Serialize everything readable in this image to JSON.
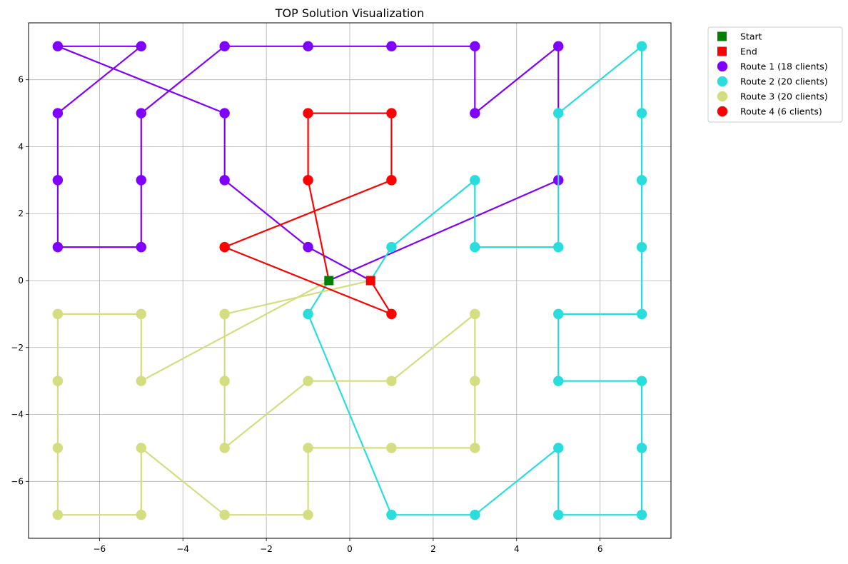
{
  "chart_data": {
    "type": "scatter",
    "title": "TOP Solution Visualization",
    "xlabel": "",
    "ylabel": "",
    "xlim": [
      -7.7,
      7.7
    ],
    "ylim": [
      -7.7,
      7.7
    ],
    "xticks": [
      -6,
      -4,
      -2,
      0,
      2,
      4,
      6
    ],
    "yticks": [
      -6,
      -4,
      -2,
      0,
      2,
      4,
      6
    ],
    "grid": true,
    "legend_position": "outside-top-right",
    "start": {
      "label": "Start",
      "x": -0.5,
      "y": 0,
      "color": "#008000"
    },
    "end": {
      "label": "End",
      "x": 0.5,
      "y": 0,
      "color": "#ff0000"
    },
    "series": [
      {
        "name": "Route 1 (18 clients)",
        "color": "#7f00ff",
        "points": [
          [
            -0.5,
            0
          ],
          [
            5,
            3
          ],
          [
            5,
            7
          ],
          [
            3,
            5
          ],
          [
            3,
            7
          ],
          [
            1,
            7
          ],
          [
            -1,
            7
          ],
          [
            -3,
            7
          ],
          [
            -5,
            5
          ],
          [
            -5,
            3
          ],
          [
            -5,
            1
          ],
          [
            -7,
            1
          ],
          [
            -7,
            3
          ],
          [
            -7,
            5
          ],
          [
            -5,
            7
          ],
          [
            -7,
            7
          ],
          [
            -3,
            5
          ],
          [
            -3,
            3
          ],
          [
            -1,
            1
          ],
          [
            0.5,
            0
          ]
        ]
      },
      {
        "name": "Route 2 (20 clients)",
        "color": "#2adddd",
        "points": [
          [
            -0.5,
            0
          ],
          [
            -1,
            -1
          ],
          [
            1,
            -7
          ],
          [
            3,
            -7
          ],
          [
            5,
            -5
          ],
          [
            5,
            -7
          ],
          [
            7,
            -7
          ],
          [
            7,
            -5
          ],
          [
            7,
            -3
          ],
          [
            5,
            -3
          ],
          [
            5,
            -1
          ],
          [
            7,
            -1
          ],
          [
            7,
            1
          ],
          [
            7,
            3
          ],
          [
            7,
            5
          ],
          [
            7,
            7
          ],
          [
            5,
            5
          ],
          [
            5,
            1
          ],
          [
            3,
            1
          ],
          [
            3,
            3
          ],
          [
            1,
            1
          ],
          [
            0.5,
            0
          ]
        ]
      },
      {
        "name": "Route 3 (20 clients)",
        "color": "#d4dd80",
        "points": [
          [
            -0.5,
            0
          ],
          [
            -5,
            -3
          ],
          [
            -5,
            -1
          ],
          [
            -7,
            -1
          ],
          [
            -7,
            -3
          ],
          [
            -7,
            -5
          ],
          [
            -7,
            -7
          ],
          [
            -5,
            -7
          ],
          [
            -5,
            -5
          ],
          [
            -3,
            -7
          ],
          [
            -1,
            -7
          ],
          [
            -1,
            -5
          ],
          [
            1,
            -5
          ],
          [
            3,
            -5
          ],
          [
            3,
            -3
          ],
          [
            3,
            -1
          ],
          [
            1,
            -3
          ],
          [
            -1,
            -3
          ],
          [
            -3,
            -5
          ],
          [
            -3,
            -3
          ],
          [
            -3,
            -1
          ],
          [
            0.5,
            0
          ]
        ]
      },
      {
        "name": "Route 4 (6 clients)",
        "color": "#ff0000",
        "points": [
          [
            -0.5,
            0
          ],
          [
            -1,
            3
          ],
          [
            -1,
            5
          ],
          [
            1,
            5
          ],
          [
            1,
            3
          ],
          [
            -3,
            1
          ],
          [
            1,
            -1
          ],
          [
            0.5,
            0
          ]
        ]
      }
    ]
  }
}
